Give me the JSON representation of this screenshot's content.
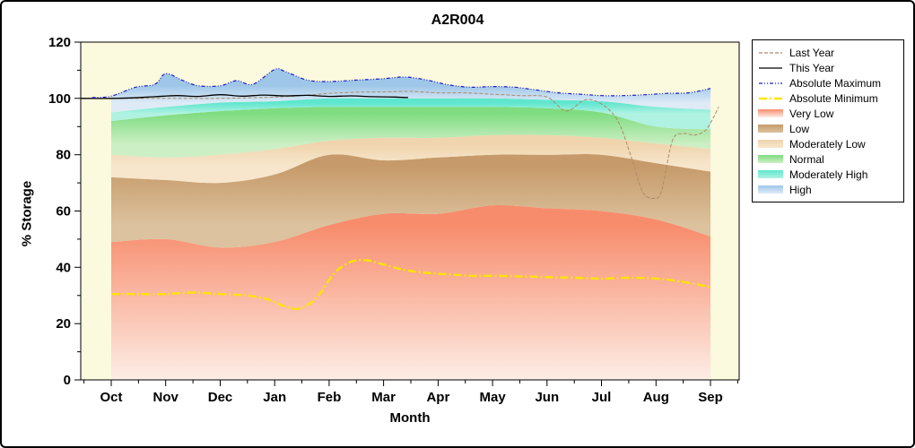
{
  "chart_data": {
    "type": "area",
    "title": "A2R004",
    "xlabel": "Month",
    "ylabel": "% Storage",
    "ylim": [
      0,
      120
    ],
    "yticks": [
      0,
      20,
      40,
      60,
      80,
      100,
      120
    ],
    "categories": [
      "Oct",
      "Nov",
      "Dec",
      "Jan",
      "Feb",
      "Mar",
      "Apr",
      "May",
      "Jun",
      "Jul",
      "Aug",
      "Sep"
    ],
    "plot_bg": "#FBF9DE",
    "legend_position": "right",
    "grid": false,
    "bands": [
      {
        "name": "Very Low",
        "color_top": "#F78C6C",
        "color_bottom": "#FDEDE6",
        "values": [
          49,
          50,
          47,
          49,
          55,
          59,
          59,
          62,
          61,
          60,
          57,
          51
        ]
      },
      {
        "name": "Low",
        "color_top": "#C69A6A",
        "color_bottom": "#DCC29E",
        "values": [
          72,
          71,
          70,
          73,
          80,
          78,
          79,
          80,
          80,
          80,
          77,
          74
        ]
      },
      {
        "name": "Moderately Low",
        "color_top": "#EFD4AE",
        "color_bottom": "#F7E6CC",
        "values": [
          80,
          79,
          80,
          82,
          85,
          86,
          86,
          87,
          87,
          86,
          84,
          82
        ]
      },
      {
        "name": "Normal",
        "color_top": "#7FDC80",
        "color_bottom": "#CDEFC5",
        "values": [
          92,
          94,
          95.5,
          96.5,
          97,
          97,
          97,
          97,
          96.5,
          95,
          90,
          89
        ]
      },
      {
        "name": "Moderately High",
        "color_top": "#5FE6CE",
        "color_bottom": "#AFF2E2",
        "values": [
          95,
          97,
          98.5,
          99,
          100,
          100,
          100,
          100,
          99.5,
          99,
          97,
          96
        ]
      },
      {
        "name": "High",
        "color_top": "#9EC6E8",
        "color_bottom": "#DEEBF7",
        "use_line": "Absolute Maximum"
      }
    ],
    "lines": [
      {
        "name": "Last Year",
        "color": "#A98C68",
        "width": 1,
        "dash": "4 2",
        "x": [
          -0.55,
          0,
          0.5,
          1,
          1.5,
          2,
          2.5,
          3,
          3.5,
          4,
          4.5,
          5,
          5.5,
          6,
          6.5,
          7,
          7.5,
          8,
          8.35,
          8.7,
          9,
          9.3,
          9.55,
          9.75,
          9.95,
          10.1,
          10.3,
          10.5,
          10.7,
          10.9,
          11.05,
          11.15
        ],
        "y": [
          100,
          100,
          100,
          100,
          100,
          100,
          100.2,
          100.5,
          101,
          101.8,
          102.2,
          102.3,
          102.5,
          102,
          102,
          101.5,
          101,
          100.5,
          95.5,
          99.5,
          98,
          92,
          79,
          67,
          64.5,
          67,
          85,
          87.5,
          87,
          88.5,
          93,
          97
        ]
      },
      {
        "name": "This Year",
        "color": "#000000",
        "width": 1.3,
        "dash": "",
        "x": [
          -0.55,
          0,
          0.4,
          0.8,
          1.2,
          1.6,
          2,
          2.4,
          2.8,
          3.2,
          3.6,
          4,
          4.4,
          4.8,
          5.2,
          5.45
        ],
        "y": [
          100,
          100,
          100.2,
          100.6,
          101,
          100.7,
          101.3,
          100.8,
          101.2,
          100.9,
          101.1,
          100.7,
          100.9,
          100.6,
          100.5,
          100.3
        ]
      },
      {
        "name": "Absolute Maximum",
        "color": "#1A1ACB",
        "width": 1.2,
        "dash": "4 2 1 2 1 2",
        "x": [
          -0.35,
          0,
          0.45,
          0.8,
          1,
          1.3,
          1.6,
          2,
          2.3,
          2.6,
          3,
          3.2,
          3.6,
          4,
          4.5,
          5,
          5.4,
          5.8,
          6.2,
          6.6,
          7,
          7.4,
          7.8,
          8.2,
          8.6,
          9,
          9.4,
          9.8,
          10.2,
          10.6,
          11
        ],
        "y": [
          100.3,
          100.8,
          104,
          105,
          108.8,
          106.5,
          104.5,
          104.5,
          106.3,
          105,
          110.3,
          109.5,
          106.5,
          106,
          106.5,
          107,
          107.6,
          106.5,
          104.8,
          104,
          104.2,
          104,
          103,
          102,
          101.5,
          101,
          101,
          101.3,
          101.8,
          102,
          103.5
        ]
      },
      {
        "name": "Absolute Minimum",
        "color": "#FFE400",
        "width": 2.4,
        "dash": "9 3 2 3",
        "x": [
          0,
          0.5,
          1,
          1.5,
          2,
          2.5,
          2.9,
          3.2,
          3.5,
          3.8,
          4.1,
          4.4,
          4.7,
          5,
          5.4,
          5.8,
          6.2,
          6.6,
          7,
          7.5,
          8,
          8.5,
          9,
          9.5,
          10,
          10.5,
          11
        ],
        "y": [
          30.5,
          30.5,
          30.5,
          31,
          30.5,
          30,
          28.5,
          26,
          25.5,
          30,
          38,
          42,
          42.5,
          41,
          39,
          38,
          37.5,
          37,
          37,
          36.8,
          36.5,
          36.3,
          36,
          36.3,
          36,
          34.8,
          33
        ]
      }
    ]
  }
}
